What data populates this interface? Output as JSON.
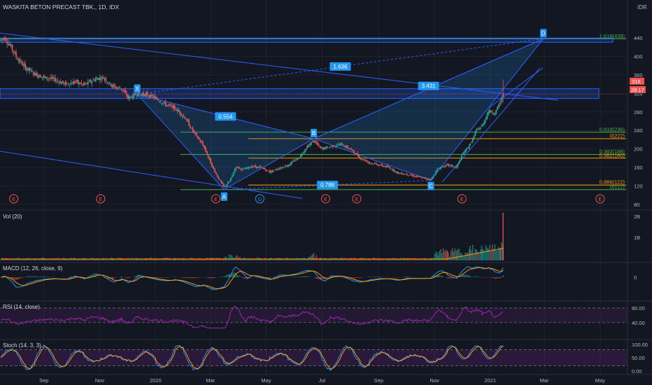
{
  "header": {
    "symbol_title": "WASKITA BETON PRECAST TBK., 1D, IDX",
    "currency": "IDR"
  },
  "price_scale": {
    "ticks": [
      "440",
      "400",
      "360",
      "320",
      "280",
      "240",
      "200",
      "160",
      "120",
      "80"
    ],
    "last_price": "318",
    "countdown": "28:17"
  },
  "time_axis": {
    "labels": [
      "Sep",
      "Nov",
      "2020",
      "Mar",
      "May",
      "Jul",
      "Sep",
      "Nov",
      "2021",
      "Mar",
      "May"
    ]
  },
  "pattern": {
    "points": [
      {
        "label": "X",
        "date": "2019-12-12",
        "price": 318
      },
      {
        "label": "A",
        "date": "2020-03-16",
        "price": 112
      },
      {
        "label": "B",
        "date": "2020-06-22",
        "price": 222
      },
      {
        "label": "C",
        "date": "2020-10-28",
        "price": 132
      },
      {
        "label": "D",
        "date": "2021-02-28",
        "price": 438
      }
    ],
    "ratios": {
      "xab": "0.554",
      "abc": "0.788",
      "bcd": "3.431",
      "xad": "1.636"
    }
  },
  "fib_levels": [
    {
      "label": "1.618(438)",
      "price": 438,
      "color": "#4caf50"
    },
    {
      "label": "0.618(236)",
      "price": 236,
      "color": "#4caf50"
    },
    {
      "label": "0(222)",
      "price": 222,
      "color": "#ff9800"
    },
    {
      "label": "0.382(188)",
      "price": 188,
      "color": "#4caf50"
    },
    {
      "label": "0.382(180)",
      "price": 180,
      "color": "#ff9800"
    },
    {
      "label": "0.886(122)",
      "price": 122,
      "color": "#ff9800"
    },
    {
      "label": "0(112)",
      "price": 112,
      "color": "#4caf50"
    }
  ],
  "earnings_markers": {
    "label": "E",
    "dividend_label": "D"
  },
  "volume": {
    "title": "Vol (20)",
    "ticks": [
      "2B",
      "1B"
    ]
  },
  "macd": {
    "title": "MACD (12, 26, close, 9)",
    "ticks": [
      "0"
    ]
  },
  "rsi": {
    "title": "RSI (14, close)",
    "ticks": [
      "80.00",
      "40.00"
    ]
  },
  "stoch": {
    "title": "Stoch (14, 3, 3)",
    "ticks": [
      "100.00",
      "50.00",
      "0.00"
    ]
  },
  "colors": {
    "background": "#131722",
    "grid": "#1e222d",
    "up": "#26a69a",
    "down": "#ef5350",
    "drawing_blue": "#2962ff",
    "label_blue": "#2196f3",
    "fib_green": "#4caf50",
    "fib_orange": "#ff9800",
    "rsi_purple": "#9c27b0",
    "macd_line": "#2196f3",
    "signal_line": "#ff9800",
    "volume_ma": "#ff9800"
  },
  "chart_data": {
    "type": "candlestick",
    "title": "WASKITA BETON PRECAST TBK., 1D, IDX",
    "x_range": [
      "2019-07-15",
      "2021-05-31"
    ],
    "ylim": [
      80,
      460
    ],
    "last_close": 318,
    "close_series": [
      {
        "date": "2019-07-16",
        "close": 435
      },
      {
        "date": "2019-07-20",
        "close": 440
      },
      {
        "date": "2019-07-27",
        "close": 420
      },
      {
        "date": "2019-08-03",
        "close": 395
      },
      {
        "date": "2019-08-12",
        "close": 375
      },
      {
        "date": "2019-08-22",
        "close": 362
      },
      {
        "date": "2019-09-01",
        "close": 355
      },
      {
        "date": "2019-09-12",
        "close": 350
      },
      {
        "date": "2019-09-25",
        "close": 340
      },
      {
        "date": "2019-10-05",
        "close": 345
      },
      {
        "date": "2019-10-15",
        "close": 338
      },
      {
        "date": "2019-10-28",
        "close": 352
      },
      {
        "date": "2019-11-05",
        "close": 354
      },
      {
        "date": "2019-11-15",
        "close": 335
      },
      {
        "date": "2019-11-25",
        "close": 330
      },
      {
        "date": "2019-12-02",
        "close": 310
      },
      {
        "date": "2019-12-12",
        "close": 318
      },
      {
        "date": "2019-12-22",
        "close": 318
      },
      {
        "date": "2020-01-01",
        "close": 310
      },
      {
        "date": "2020-01-12",
        "close": 296
      },
      {
        "date": "2020-01-22",
        "close": 288
      },
      {
        "date": "2020-02-01",
        "close": 270
      },
      {
        "date": "2020-02-12",
        "close": 235
      },
      {
        "date": "2020-02-22",
        "close": 208
      },
      {
        "date": "2020-03-03",
        "close": 162
      },
      {
        "date": "2020-03-10",
        "close": 135
      },
      {
        "date": "2020-03-16",
        "close": 118
      },
      {
        "date": "2020-03-22",
        "close": 130
      },
      {
        "date": "2020-03-29",
        "close": 162
      },
      {
        "date": "2020-04-05",
        "close": 155
      },
      {
        "date": "2020-04-15",
        "close": 162
      },
      {
        "date": "2020-04-25",
        "close": 160
      },
      {
        "date": "2020-05-05",
        "close": 150
      },
      {
        "date": "2020-05-15",
        "close": 158
      },
      {
        "date": "2020-05-25",
        "close": 165
      },
      {
        "date": "2020-06-05",
        "close": 180
      },
      {
        "date": "2020-06-15",
        "close": 205
      },
      {
        "date": "2020-06-22",
        "close": 218
      },
      {
        "date": "2020-06-30",
        "close": 200
      },
      {
        "date": "2020-07-10",
        "close": 205
      },
      {
        "date": "2020-07-22",
        "close": 210
      },
      {
        "date": "2020-08-02",
        "close": 198
      },
      {
        "date": "2020-08-12",
        "close": 180
      },
      {
        "date": "2020-08-22",
        "close": 170
      },
      {
        "date": "2020-09-02",
        "close": 165
      },
      {
        "date": "2020-09-12",
        "close": 160
      },
      {
        "date": "2020-09-22",
        "close": 148
      },
      {
        "date": "2020-10-02",
        "close": 145
      },
      {
        "date": "2020-10-12",
        "close": 140
      },
      {
        "date": "2020-10-22",
        "close": 136
      },
      {
        "date": "2020-10-28",
        "close": 134
      },
      {
        "date": "2020-11-05",
        "close": 158
      },
      {
        "date": "2020-11-15",
        "close": 165
      },
      {
        "date": "2020-11-25",
        "close": 160
      },
      {
        "date": "2020-12-02",
        "close": 190
      },
      {
        "date": "2020-12-10",
        "close": 210
      },
      {
        "date": "2020-12-17",
        "close": 240
      },
      {
        "date": "2020-12-23",
        "close": 250
      },
      {
        "date": "2020-12-30",
        "close": 282
      },
      {
        "date": "2021-01-06",
        "close": 278
      },
      {
        "date": "2021-01-12",
        "close": 300
      },
      {
        "date": "2021-01-15",
        "close": 318
      }
    ]
  }
}
